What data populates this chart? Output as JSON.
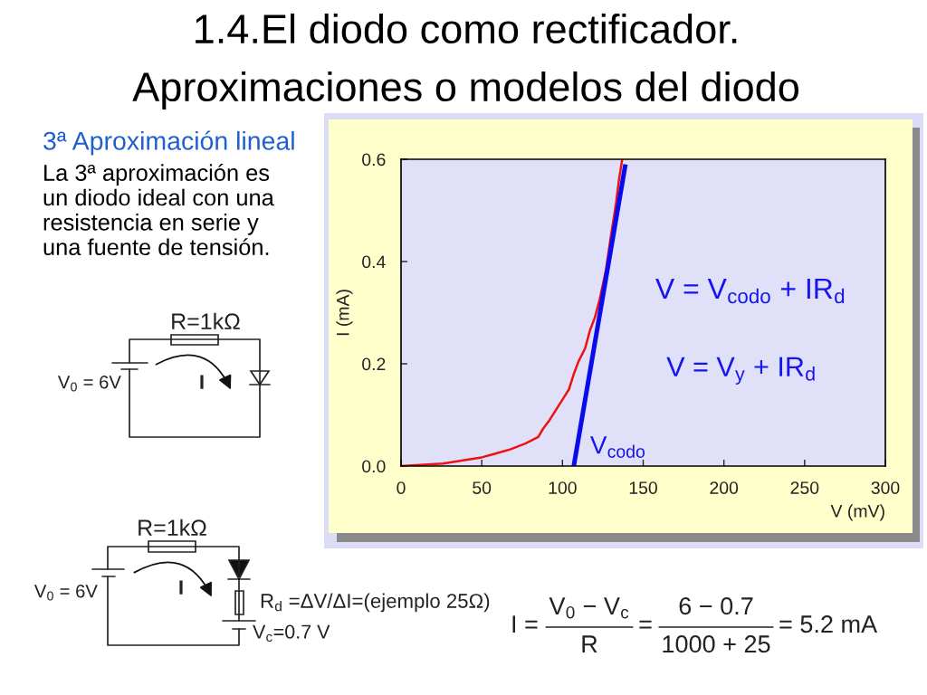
{
  "chart_data": {
    "type": "line",
    "title": "1.4.El diodo como rectificador.",
    "subtitle": "Aproximaciones o modelos del diodo",
    "xlabel": "V (mV)",
    "ylabel": "I (mA)",
    "xlim": [
      0,
      300
    ],
    "ylim": [
      0,
      0.6
    ],
    "xticks": [
      0,
      50,
      100,
      150,
      200,
      250,
      300
    ],
    "yticks": [
      {
        "value": 0,
        "label": "0.0"
      },
      0.2,
      0.4,
      0.6
    ],
    "series": [
      {
        "color": "#ee1111",
        "x": [
          0,
          26,
          40,
          50,
          58,
          68,
          77,
          85,
          88,
          92,
          96,
          100,
          104,
          107,
          110,
          114,
          117,
          120,
          123,
          125,
          127,
          130,
          133,
          135,
          137
        ],
        "values": [
          0,
          0.005,
          0.012,
          0.017,
          0.024,
          0.033,
          0.044,
          0.057,
          0.073,
          0.09,
          0.11,
          0.13,
          0.15,
          0.18,
          0.205,
          0.23,
          0.265,
          0.29,
          0.325,
          0.355,
          0.385,
          0.45,
          0.51,
          0.56,
          0.6
        ]
      },
      {
        "color": "#0a0aee",
        "x": [
          107,
          139
        ],
        "values": [
          0,
          0.59
        ]
      }
    ],
    "annotations": [
      "3ª Aproximación lineal",
      "La 3ª aproximación es\nun diodo ideal con una\nresistencia en serie y\nuna fuente de tensión.",
      "R=1kΩ",
      "V$_{0}$ = 6V",
      "I",
      "V = V$_{codo}$ + IR$_{d}$",
      "V = V$_{y}$ + IR$_{d}$",
      {
        "text": "V$_{codo}$",
        "x": 107,
        "y": 0
      },
      "R=1kΩ",
      "V$_{0}$ = 6V",
      "I",
      "R$_{d}$ =ΔV/ΔI=(ejemplo 25Ω)",
      "V$_{c}$=0.7 V",
      "I =",
      "V$_{0}$ − V$_{c}$",
      "R",
      "=",
      "6 − 0.7",
      "1000 + 25",
      "= 5.2 mA"
    ]
  }
}
